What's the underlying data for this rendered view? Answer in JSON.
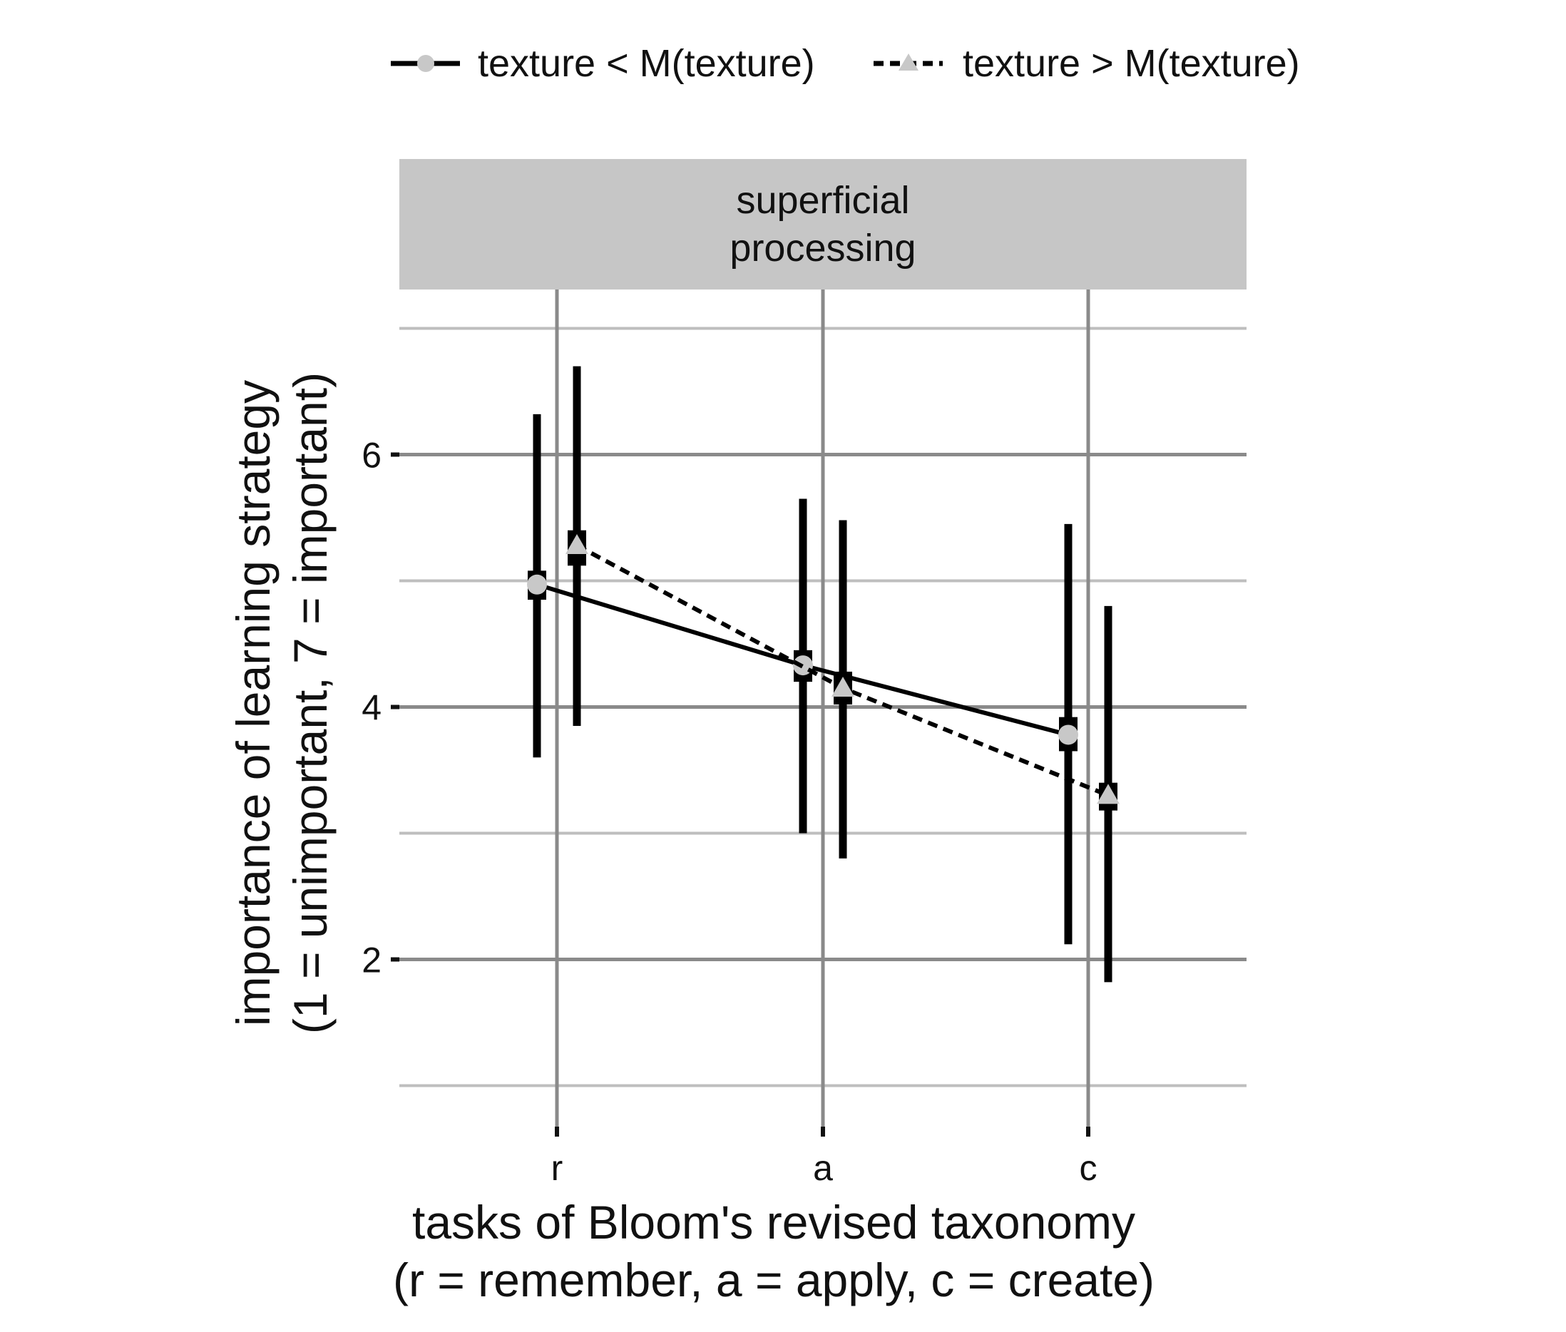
{
  "chart_data": {
    "type": "line",
    "facet_label_line1": "superficial",
    "facet_label_line2": "processing",
    "xlabel_line1": "tasks of Bloom's revised taxonomy",
    "xlabel_line2": "(r = remember, a = apply, c = create)",
    "ylabel_line1": "importance of learning strategy",
    "ylabel_line2": "(1 = unimportant, 7 = important)",
    "categories": [
      "r",
      "a",
      "c"
    ],
    "ylim": [
      0.8,
      7.3
    ],
    "yticks": [
      2,
      4,
      6
    ],
    "ygrid_minor": [
      1,
      3,
      5,
      7
    ],
    "grid": true,
    "legend_position": "top",
    "series": [
      {
        "name": "texture < M(texture)",
        "marker": "circle",
        "line_style": "solid",
        "values": [
          4.97,
          4.33,
          3.78
        ],
        "ci_low": [
          3.6,
          3.0,
          2.12
        ],
        "ci_high": [
          6.32,
          5.65,
          5.45
        ],
        "inner_low": [
          4.85,
          4.2,
          3.65
        ],
        "inner_high": [
          5.08,
          4.45,
          3.92
        ]
      },
      {
        "name": "texture > M(texture)",
        "marker": "triangle",
        "line_style": "dashed",
        "values": [
          5.28,
          4.15,
          3.3
        ],
        "ci_low": [
          3.85,
          2.8,
          1.82
        ],
        "ci_high": [
          6.7,
          5.48,
          4.8
        ],
        "inner_low": [
          5.12,
          4.02,
          3.18
        ],
        "inner_high": [
          5.4,
          4.28,
          3.4
        ]
      }
    ],
    "colors": {
      "panel_strip": "#c6c6c6",
      "grid_major": "#8a8a8a",
      "grid_minor": "#bebebe",
      "line": "#000000",
      "marker_fill": "#c8c8c8"
    }
  }
}
